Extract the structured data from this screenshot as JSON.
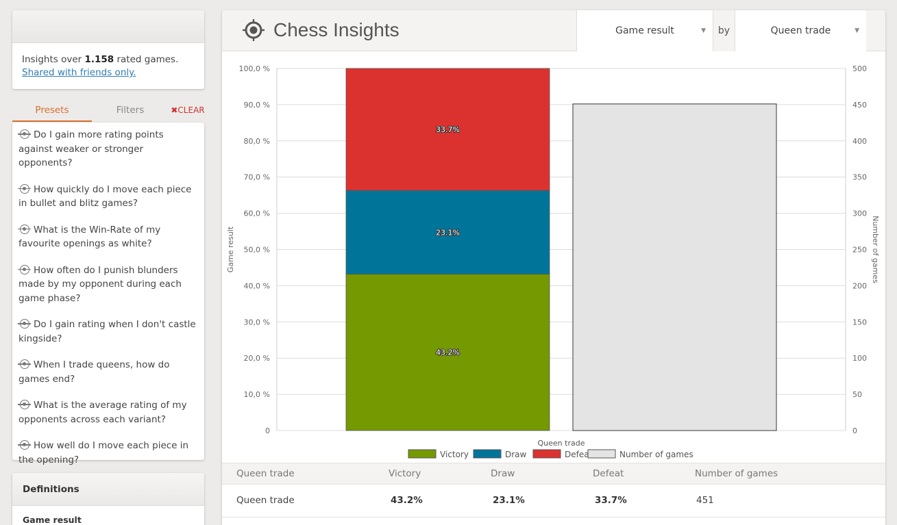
{
  "sidebar": {
    "insights_prefix": "Insights over ",
    "games_count": "1.158",
    "insights_suffix": " rated games.",
    "share_link": "Shared with friends only.",
    "tabs": {
      "presets": "Presets",
      "filters": "Filters",
      "clear": "✖CLEAR"
    },
    "presets": [
      "Do I gain more rating points against weaker or stronger opponents?",
      "How quickly do I move each piece in bullet and blitz games?",
      "What is the Win-Rate of my favourite openings as white?",
      "How often do I punish blunders made by my opponent during each game phase?",
      "Do I gain rating when I don't castle kingside?",
      "When I trade queens, how do games end?",
      "What is the average rating of my opponents across each variant?",
      "How well do I move each piece in the opening?"
    ],
    "definitions": {
      "title": "Definitions",
      "first": "Game result"
    }
  },
  "header": {
    "title": "Chess Insights",
    "metric_select": "Game result",
    "by": "by",
    "dimension_select": "Queen trade"
  },
  "colors": {
    "victory": "#759900",
    "draw": "#007599",
    "defeat": "#dc322f",
    "games": "#e4e4e4",
    "accent": "#d86f2d"
  },
  "chart_data": {
    "type": "bar",
    "categories": [
      "Queen trade"
    ],
    "xlabel": "Queen trade",
    "ylabel": "Game result",
    "y2label": "Number of games",
    "ylim": [
      0,
      100
    ],
    "y2lim": [
      0,
      500
    ],
    "yticks": [
      "0",
      "10,0 %",
      "20,0 %",
      "30,0 %",
      "40,0 %",
      "50,0 %",
      "60,0 %",
      "70,0 %",
      "80,0 %",
      "90,0 %",
      "100,0 %"
    ],
    "y2ticks": [
      "0",
      "50",
      "100",
      "150",
      "200",
      "250",
      "300",
      "350",
      "400",
      "450",
      "500"
    ],
    "stacked_series": [
      {
        "name": "Victory",
        "value": 43.2,
        "label": "43.2%",
        "color": "#759900"
      },
      {
        "name": "Draw",
        "value": 23.1,
        "label": "23.1%",
        "color": "#007599"
      },
      {
        "name": "Defeat",
        "value": 33.7,
        "label": "33.7%",
        "color": "#dc322f"
      }
    ],
    "count_series": {
      "name": "Number of games",
      "value": 451,
      "color": "#e4e4e4"
    },
    "legend": [
      "Victory",
      "Draw",
      "Defeat",
      "Number of games"
    ],
    "grid": true,
    "legend_position": "bottom"
  },
  "table": {
    "headers": [
      "Queen trade",
      "Victory",
      "Draw",
      "Defeat",
      "Number of games"
    ],
    "row": [
      "Queen trade",
      "43.2%",
      "23.1%",
      "33.7%",
      "451"
    ]
  }
}
